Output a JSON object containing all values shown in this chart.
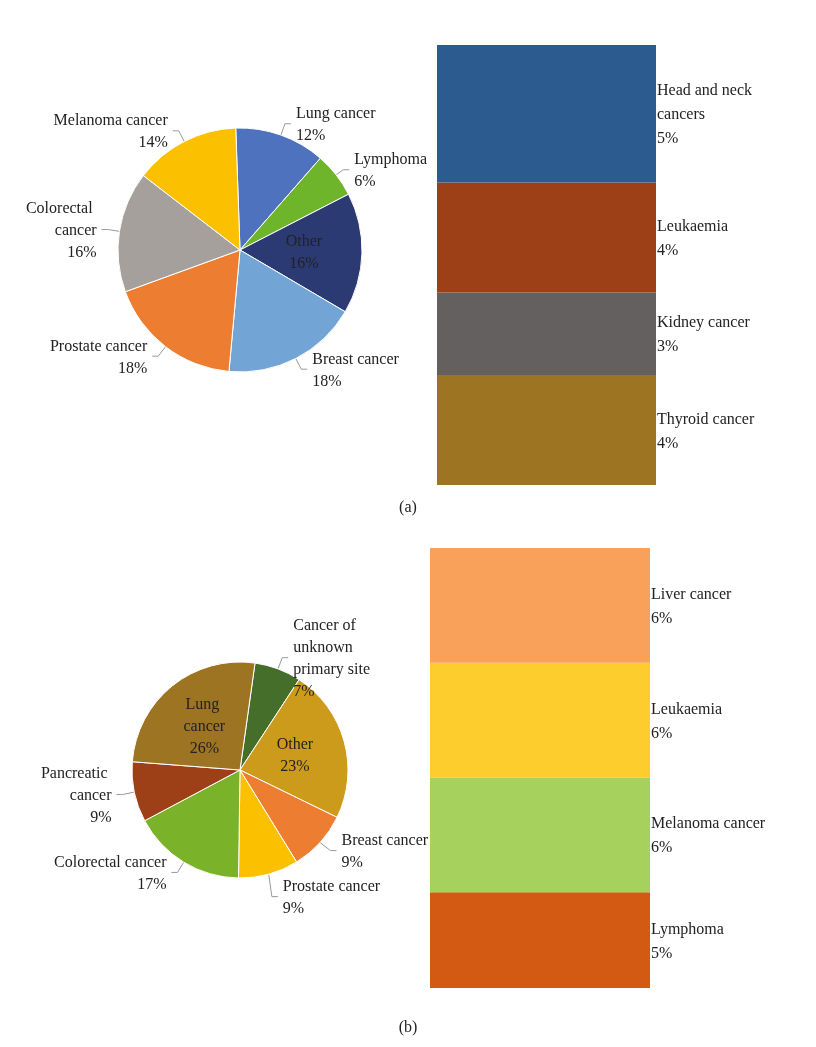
{
  "chart_data": [
    {
      "type": "pie",
      "title": "(a)",
      "categories": [
        "Lung cancer",
        "Lymphoma",
        "Other",
        "Breast cancer",
        "Prostate cancer",
        "Colorectal cancer",
        "Melanoma cancer"
      ],
      "values": [
        12,
        6,
        16,
        18,
        18,
        16,
        14
      ],
      "value_labels": [
        "12%",
        "6%",
        "16%",
        "18%",
        "18%",
        "16%",
        "14%"
      ],
      "colors": [
        "#4f72be",
        "#6fb52c",
        "#2b3a72",
        "#72a5d6",
        "#ed7d31",
        "#a5a09b",
        "#fbc000"
      ]
    },
    {
      "type": "bar",
      "stacked": true,
      "categories": [
        null
      ],
      "series": [
        {
          "name": "Thyroid cancer",
          "color": "#9c7422",
          "values": [
            4
          ],
          "value_labels": [
            "4%"
          ]
        },
        {
          "name": "Kidney cancer",
          "color": "#646060",
          "values": [
            3
          ],
          "value_labels": [
            "3%"
          ]
        },
        {
          "name": "Leukaemia",
          "color": "#9e4017",
          "values": [
            4
          ],
          "value_labels": [
            "4%"
          ]
        },
        {
          "name": "Head and neck cancers",
          "color": "#2c5b8f",
          "values": [
            5
          ],
          "value_labels": [
            "5%"
          ]
        }
      ]
    },
    {
      "type": "pie",
      "title": "(b)",
      "categories": [
        "Cancer of unknown primary site",
        "Other",
        "Breast cancer",
        "Prostate cancer",
        "Colorectal cancer",
        "Pancreatic cancer",
        "Lung cancer"
      ],
      "values": [
        7,
        23,
        9,
        9,
        17,
        9,
        26
      ],
      "value_labels": [
        "7%",
        "23%",
        "9%",
        "9%",
        "17%",
        "9%",
        "26%"
      ],
      "colors": [
        "#446e2a",
        "#cd9b1c",
        "#ed7d31",
        "#fbc000",
        "#7ab32a",
        "#9e4017",
        "#9c7422"
      ]
    },
    {
      "type": "bar",
      "stacked": true,
      "categories": [
        null
      ],
      "series": [
        {
          "name": "Lymphoma",
          "color": "#d35a12",
          "values": [
            5
          ],
          "value_labels": [
            "5%"
          ]
        },
        {
          "name": "Melanoma cancer",
          "color": "#a6d15c",
          "values": [
            6
          ],
          "value_labels": [
            "6%"
          ]
        },
        {
          "name": "Leukaemia",
          "color": "#fdcd2e",
          "values": [
            6
          ],
          "value_labels": [
            "6%"
          ]
        },
        {
          "name": "Liver cancer",
          "color": "#f9a05a",
          "values": [
            6
          ],
          "value_labels": [
            "6%"
          ]
        }
      ]
    }
  ]
}
